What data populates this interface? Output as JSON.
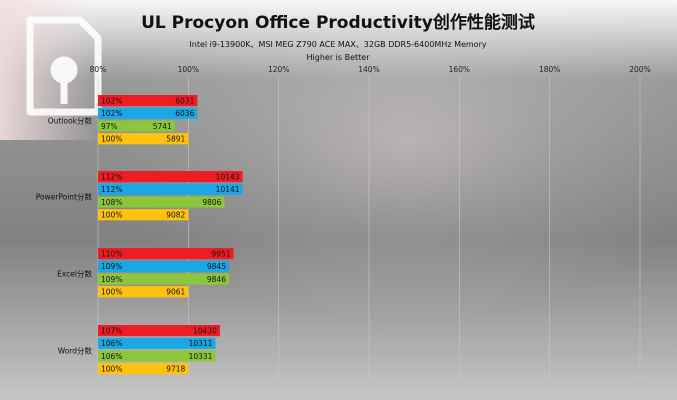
{
  "chart_data": {
    "type": "bar",
    "title": "UL Procyon Office Productivity创作性能测试",
    "subtitle": "Intel i9-13900K、MSI MEG Z790 ACE MAX、32GB DDR5-6400MHz Memory",
    "note": "Higher is Better",
    "xlim": [
      80,
      200
    ],
    "x_ticks": [
      "80%",
      "100%",
      "120%",
      "140%",
      "160%",
      "180%",
      "200%"
    ],
    "grid": true,
    "categories": [
      "Outlook分数",
      "PowerPoint分数",
      "Excel分数",
      "Word分数"
    ],
    "series": [
      {
        "color": "#ee1c25",
        "percent_labels": [
          "102%",
          "112%",
          "110%",
          "107%"
        ],
        "values": [
          102,
          112,
          110,
          107
        ],
        "scores": [
          "6031",
          "10143",
          "9951",
          "10430"
        ]
      },
      {
        "color": "#1aa7e6",
        "percent_labels": [
          "102%",
          "112%",
          "109%",
          "106%"
        ],
        "values": [
          102,
          112,
          109,
          106
        ],
        "scores": [
          "6036",
          "10141",
          "9845",
          "10311"
        ]
      },
      {
        "color": "#8cc63f",
        "percent_labels": [
          "97%",
          "108%",
          "109%",
          "106%"
        ],
        "values": [
          97,
          108,
          109,
          106
        ],
        "scores": [
          "5741",
          "9806",
          "9846",
          "10331"
        ]
      },
      {
        "color": "#ffc20e",
        "percent_labels": [
          "100%",
          "100%",
          "100%",
          "100%"
        ],
        "values": [
          100,
          100,
          100,
          100
        ],
        "scores": [
          "5891",
          "9082",
          "9061",
          "9718"
        ]
      }
    ]
  }
}
